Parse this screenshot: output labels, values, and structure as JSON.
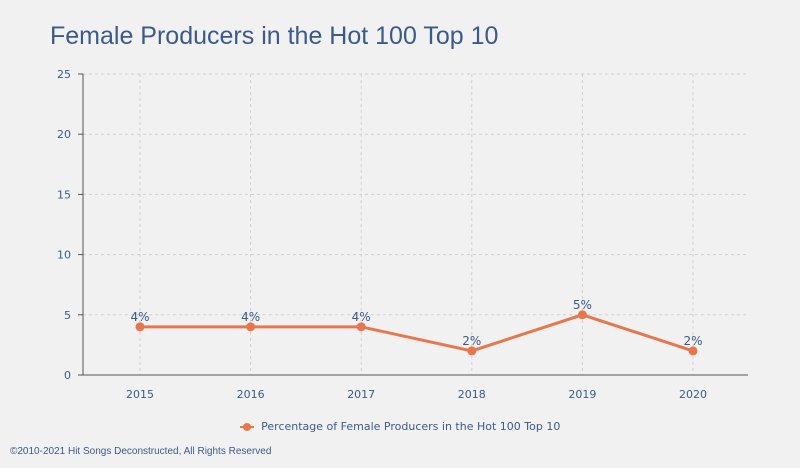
{
  "title": "Female Producers in the Hot 100 Top 10",
  "footer": "©2010-2021 Hit Songs Deconstructed, All Rights Reserved",
  "colors": {
    "line": "#e8764d",
    "text": "#3b5a8a",
    "grid": "#cfcfcf",
    "axis": "#555555"
  },
  "chart_data": {
    "type": "line",
    "categories": [
      "2015",
      "2016",
      "2017",
      "2018",
      "2019",
      "2020"
    ],
    "series": [
      {
        "name": "Percentage of Female Producers in the Hot 100 Top 10",
        "values": [
          4,
          4,
          4,
          2,
          5,
          2
        ],
        "labels": [
          "4%",
          "4%",
          "4%",
          "2%",
          "5%",
          "2%"
        ]
      }
    ],
    "ylim": [
      0,
      25
    ],
    "yticks": [
      0,
      5,
      10,
      15,
      20,
      25
    ],
    "grid": true,
    "legend": "bottom-center"
  }
}
